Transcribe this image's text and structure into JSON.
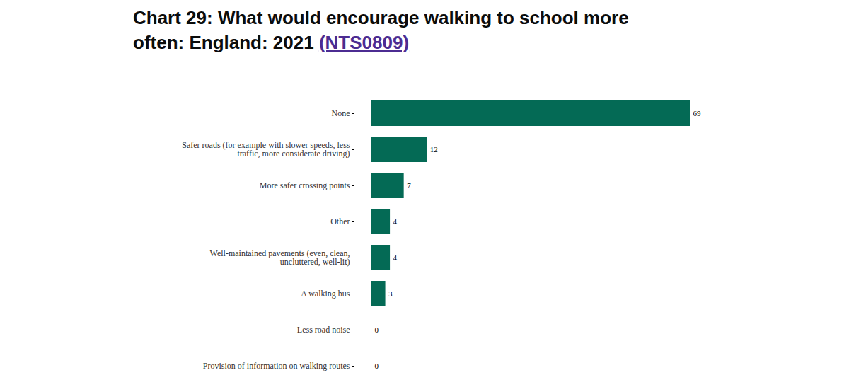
{
  "chart_data": {
    "type": "bar",
    "orientation": "horizontal",
    "title": "Chart 29: What would encourage walking to school more often: England: 2021 (NTS0809)",
    "categories": [
      "None",
      "Safer roads (for example with slower speeds, less traffic, more considerate driving)",
      "More safer crossing points",
      "Other",
      "Well-maintained pavements (even, clean, uncluttered, well-lit)",
      "A walking bus",
      "Less road noise",
      "Provision of information on walking routes"
    ],
    "values": [
      69,
      12,
      7,
      4,
      4,
      3,
      0,
      0
    ],
    "color": "#046a55",
    "xlim": [
      0,
      69
    ],
    "xticks": [],
    "grid": false,
    "data_labels": true,
    "tick_labels": "y"
  }
}
